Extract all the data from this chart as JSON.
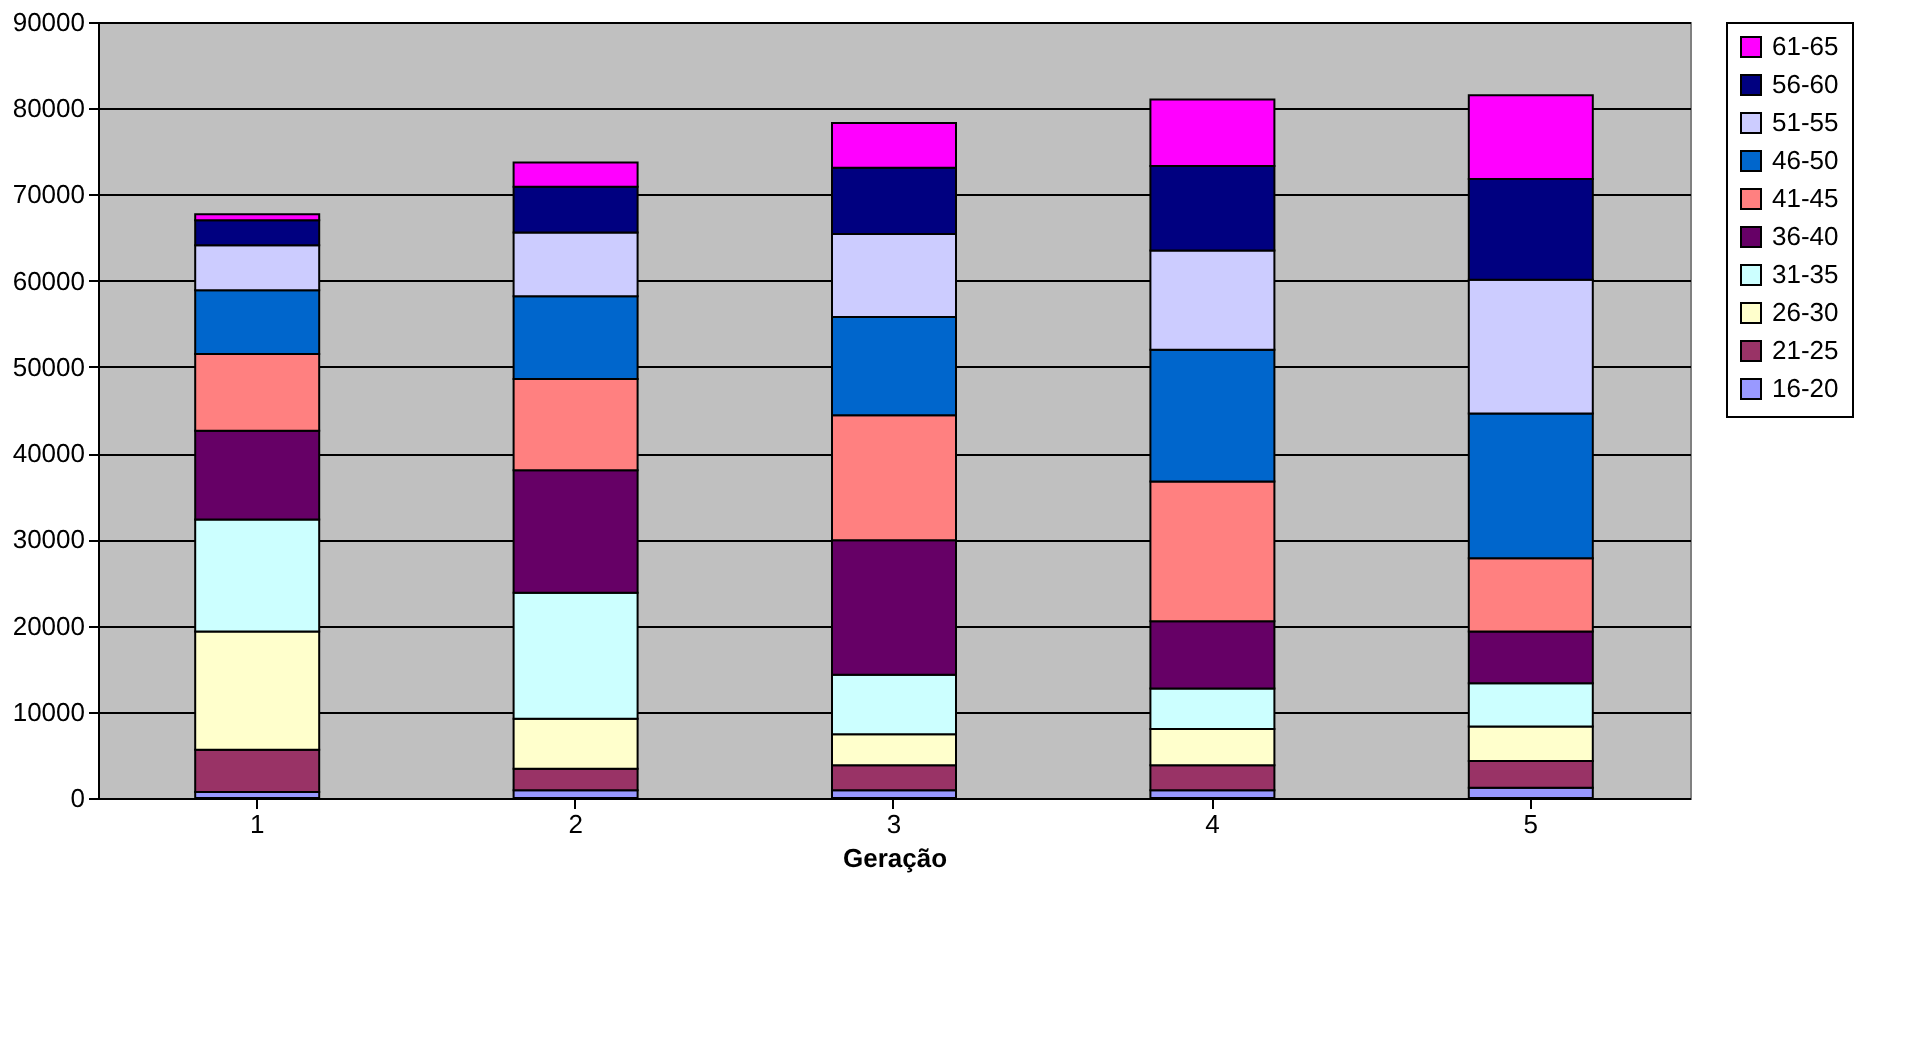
{
  "chart_data": {
    "type": "bar",
    "stacked": true,
    "xlabel": "Geração",
    "categories": [
      "1",
      "2",
      "3",
      "4",
      "5"
    ],
    "ylim": [
      0,
      90000
    ],
    "yticks": [
      0,
      10000,
      20000,
      30000,
      40000,
      50000,
      60000,
      70000,
      80000,
      90000
    ],
    "grid": "y",
    "legend": "right",
    "series": [
      {
        "name": "16-20",
        "color": "#9999ff",
        "values": [
          700,
          900,
          900,
          900,
          1200
        ]
      },
      {
        "name": "21-25",
        "color": "#993366",
        "values": [
          4900,
          2500,
          2900,
          2900,
          3100
        ]
      },
      {
        "name": "26-30",
        "color": "#ffffcc",
        "values": [
          13700,
          5800,
          3600,
          4200,
          4000
        ]
      },
      {
        "name": "31-35",
        "color": "#ccffff",
        "values": [
          13000,
          14600,
          6900,
          4700,
          5000
        ]
      },
      {
        "name": "36-40",
        "color": "#660066",
        "values": [
          10300,
          14200,
          15600,
          7800,
          6000
        ]
      },
      {
        "name": "41-45",
        "color": "#ff8080",
        "values": [
          8900,
          10600,
          14500,
          16200,
          8500
        ]
      },
      {
        "name": "46-50",
        "color": "#0066cc",
        "values": [
          7400,
          9600,
          11400,
          15300,
          16800
        ]
      },
      {
        "name": "51-55",
        "color": "#ccccff",
        "values": [
          5200,
          7400,
          9600,
          11500,
          15500
        ]
      },
      {
        "name": "56-60",
        "color": "#000080",
        "values": [
          2900,
          5300,
          7700,
          9800,
          11700
        ]
      },
      {
        "name": "61-65",
        "color": "#ff00ff",
        "values": [
          700,
          2800,
          5200,
          7700,
          9700
        ]
      }
    ]
  }
}
